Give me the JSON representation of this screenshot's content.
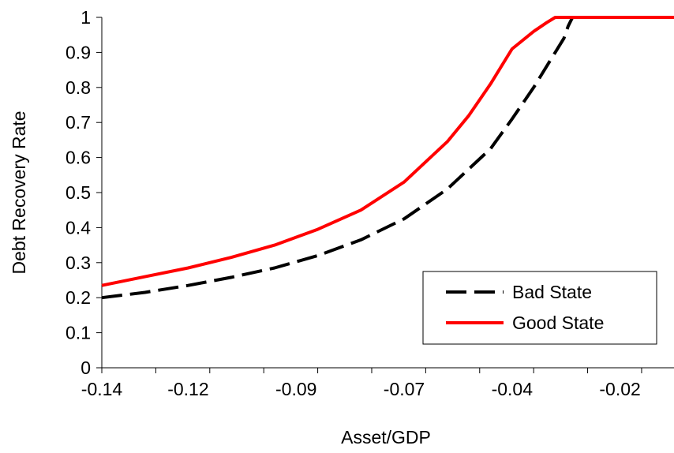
{
  "chart_data": {
    "type": "line",
    "title": "",
    "xlabel": "Asset/GDP",
    "ylabel": "Debt Recovery Rate",
    "xlim": [
      -0.14,
      -0.0075
    ],
    "ylim": [
      0,
      1
    ],
    "x_tick_labels": [
      "-0.14",
      "-0.12",
      "-0.09",
      "-0.07",
      "-0.04",
      "-0.02"
    ],
    "x_tick_values": [
      -0.14,
      -0.12,
      -0.095,
      -0.07,
      -0.045,
      -0.02
    ],
    "y_ticks": [
      0,
      0.1,
      0.2,
      0.3,
      0.4,
      0.5,
      0.6,
      0.7,
      0.8,
      0.9,
      1
    ],
    "y_tick_labels": [
      "0",
      "0.1",
      "0.2",
      "0.3",
      "0.4",
      "0.5",
      "0.6",
      "0.7",
      "0.8",
      "0.9",
      "1"
    ],
    "grid": false,
    "legend_position": "bottom-right",
    "series": [
      {
        "name": "Bad State",
        "color": "#000000",
        "style": "dashed",
        "x": [
          -0.14,
          -0.13,
          -0.12,
          -0.11,
          -0.1,
          -0.09,
          -0.08,
          -0.07,
          -0.06,
          -0.05,
          -0.045,
          -0.04,
          -0.035,
          -0.033,
          -0.032,
          -0.031,
          -0.0075
        ],
        "y": [
          0.2,
          0.215,
          0.235,
          0.258,
          0.285,
          0.32,
          0.365,
          0.425,
          0.51,
          0.625,
          0.71,
          0.8,
          0.9,
          0.94,
          0.975,
          1.0,
          1.0
        ]
      },
      {
        "name": "Good State",
        "color": "#ff0000",
        "style": "solid",
        "x": [
          -0.14,
          -0.13,
          -0.12,
          -0.11,
          -0.1,
          -0.09,
          -0.08,
          -0.07,
          -0.06,
          -0.055,
          -0.05,
          -0.045,
          -0.04,
          -0.037,
          -0.035,
          -0.0075
        ],
        "y": [
          0.235,
          0.26,
          0.285,
          0.315,
          0.35,
          0.395,
          0.45,
          0.53,
          0.645,
          0.72,
          0.81,
          0.91,
          0.96,
          0.985,
          1.0,
          1.0
        ]
      }
    ]
  }
}
